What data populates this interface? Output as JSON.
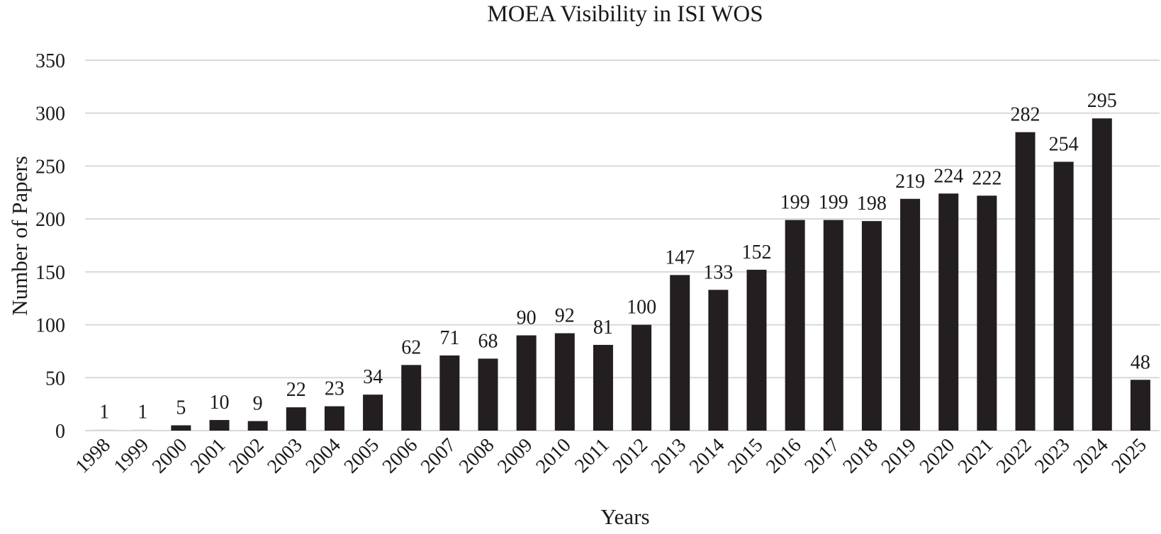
{
  "chart_data": {
    "type": "bar",
    "title": "MOEA Visibility in ISI WOS",
    "xlabel": "Years",
    "ylabel": "Number of Papers",
    "ylim": [
      0,
      350
    ],
    "yticks": [
      0,
      50,
      100,
      150,
      200,
      250,
      300,
      350
    ],
    "grid": true,
    "categories": [
      "1998",
      "1999",
      "2000",
      "2001",
      "2002",
      "2003",
      "2004",
      "2005",
      "2006",
      "2007",
      "2008",
      "2009",
      "2010",
      "2011",
      "2012",
      "2013",
      "2014",
      "2015",
      "2016",
      "2017",
      "2018",
      "2019",
      "2020",
      "2021",
      "2022",
      "2023",
      "2024",
      "2025"
    ],
    "values": [
      1,
      1,
      5,
      10,
      9,
      22,
      23,
      34,
      62,
      71,
      68,
      90,
      92,
      81,
      100,
      147,
      133,
      152,
      199,
      199,
      198,
      219,
      224,
      222,
      282,
      254,
      295,
      48
    ],
    "data_labels": [
      "1",
      "1",
      "5",
      "10",
      "9",
      "22",
      "23",
      "34",
      "62",
      "71",
      "68",
      "90",
      "92",
      "81",
      "100",
      "147",
      "133",
      "152",
      "199",
      "199",
      "198",
      "219",
      "224",
      "222",
      "282",
      "254",
      "295",
      "48"
    ],
    "bar_color": "#231f20"
  }
}
